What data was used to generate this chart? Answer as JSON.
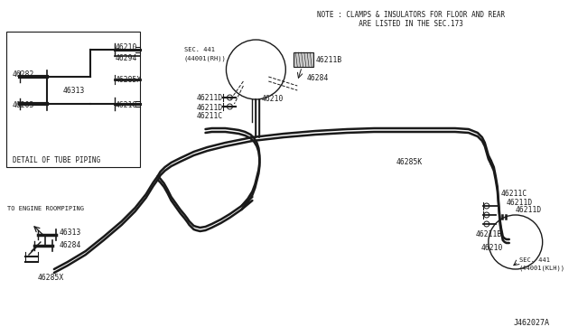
{
  "bg": "#ffffff",
  "lc": "#1a1a1a",
  "note1": "NOTE : CLAMPS & INSULATORS FOR FLOOR AND REAR",
  "note2": "          ARE LISTED IN THE SEC.173",
  "diag_id": "J462027A",
  "box_label": "DETAIL OF TUBE PIPING",
  "engine_label": "TO ENGINE ROOMPIPING",
  "sec_rh_1": "SEC. 441",
  "sec_rh_2": "(44001(RH))",
  "sec_lh_1": "SEC. 441",
  "sec_lh_2": "(44001(KLH))"
}
